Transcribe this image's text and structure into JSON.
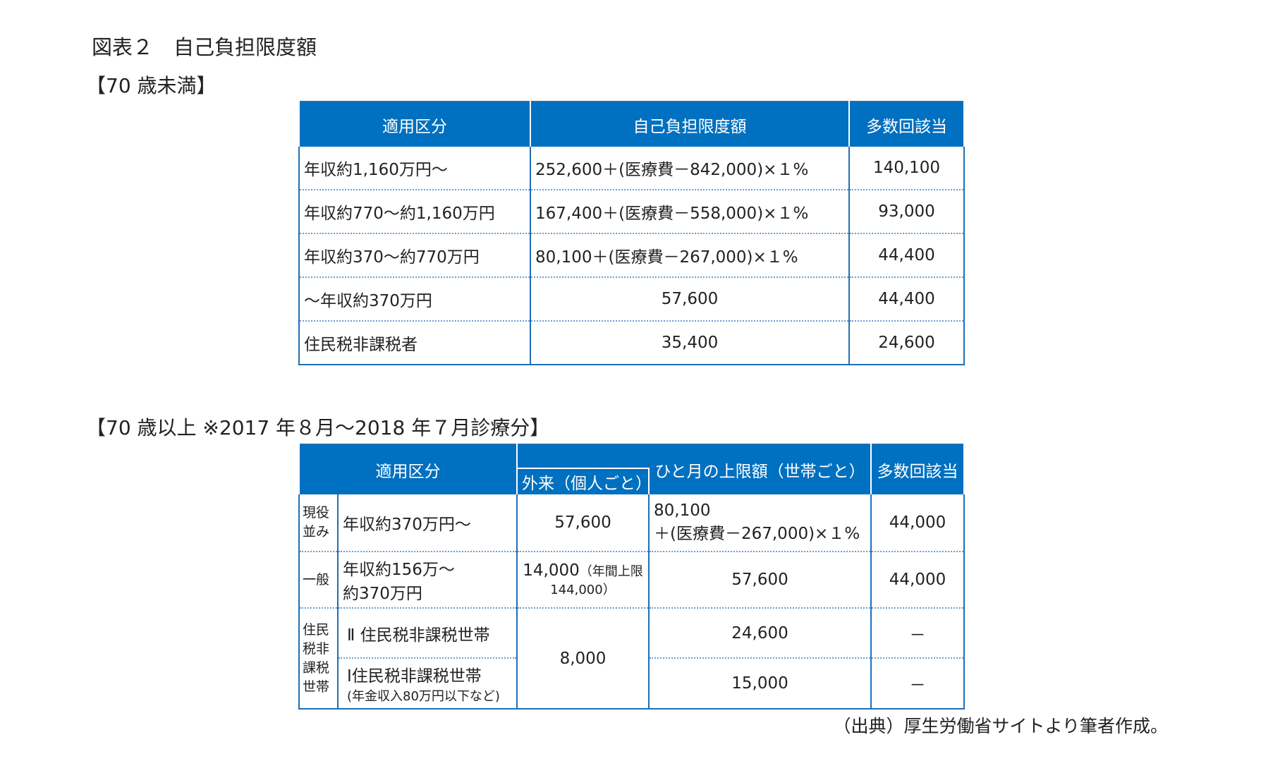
{
  "title": "図表２　自己負担限度額",
  "section1": "【70 歳未満】",
  "table1": {
    "headers": [
      "適用区分",
      "自己負担限度額",
      "多数回該当"
    ],
    "rows": [
      [
        "年収約1,160万円～",
        "252,600＋(医療費－842,000)×１%",
        "140,100"
      ],
      [
        "年収約770～約1,160万円",
        "167,400＋(医療費－558,000)×１%",
        "93,000"
      ],
      [
        "年収約370～約770万円",
        "80,100＋(医療費－267,000)×１%",
        "44,400"
      ],
      [
        "～年収約370万円",
        "57,600",
        "44,400"
      ],
      [
        "住民税非課税者",
        "35,400",
        "24,600"
      ]
    ]
  },
  "section2": "【70 歳以上 ※2017 年８月～2018 年７月診療分】",
  "table2": {
    "headers": {
      "category": "適用区分",
      "outpatient": "外来（個人ごと）",
      "monthly": "ひと月の上限額（世帯ごと）",
      "multiple": "多数回該当"
    },
    "group1": {
      "label": "現役並み",
      "income": "年収約370万円～",
      "outpatient": "57,600",
      "monthly_line1": "80,100",
      "monthly_line2": "＋(医療費－267,000)×１%",
      "multiple": "44,000"
    },
    "group2": {
      "label": "一般",
      "income_line1": "年収約156万～",
      "income_line2": "約370万円",
      "outpatient": "14,000",
      "outpatient_note1": "（年間上限",
      "outpatient_note2": "144,000）",
      "monthly": "57,600",
      "multiple": "44,000"
    },
    "group3": {
      "label_line1": "住民",
      "label_line2": "税非",
      "label_line3": "課税",
      "label_line4": "世帯",
      "outpatient": "8,000",
      "row1": {
        "income": "Ⅱ 住民税非課税世帯",
        "monthly": "24,600",
        "multiple": "－"
      },
      "row2": {
        "income": "Ⅰ住民税非課税世帯",
        "income_note": "(年金収入80万円以下など)",
        "monthly": "15,000",
        "multiple": "－"
      }
    }
  },
  "footer": "（出典）厚生労働省サイトより筆者作成。",
  "colors": {
    "header_bg": "#0070c0",
    "border": "#1f6fb5"
  }
}
